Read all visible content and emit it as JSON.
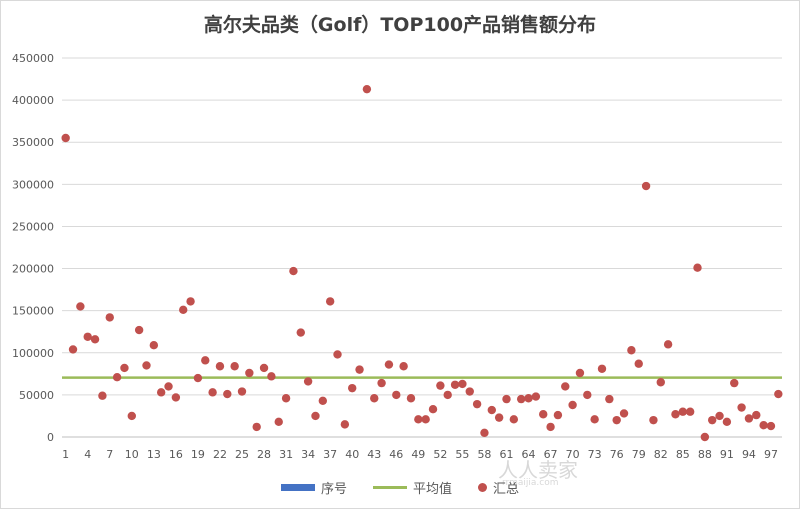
{
  "chart_data": {
    "type": "scatter",
    "title": "高尔夫品类（Golf）TOP100产品销售额分布",
    "ylim": [
      0,
      450000
    ],
    "y_ticks": [
      "0",
      "50000",
      "100000",
      "150000",
      "200000",
      "250000",
      "300000",
      "350000",
      "400000",
      "450000"
    ],
    "x_ticks": [
      "1",
      "4",
      "7",
      "10",
      "13",
      "16",
      "19",
      "22",
      "25",
      "28",
      "31",
      "34",
      "37",
      "40",
      "43",
      "46",
      "49",
      "52",
      "55",
      "58",
      "61",
      "64",
      "67",
      "70",
      "73",
      "76",
      "79",
      "82",
      "85",
      "88",
      "91",
      "94",
      "97"
    ],
    "x_tick_values": [
      1,
      4,
      7,
      10,
      13,
      16,
      19,
      22,
      25,
      28,
      31,
      34,
      37,
      40,
      43,
      46,
      49,
      52,
      55,
      58,
      61,
      64,
      67,
      70,
      73,
      76,
      79,
      82,
      85,
      88,
      91,
      94,
      97
    ],
    "xlim": [
      0.5,
      98.5
    ],
    "grid": "horizontal",
    "legend_position": "bottom",
    "series": [
      {
        "name": "序号",
        "kind": "bar",
        "color": "#4472C4",
        "values": []
      },
      {
        "name": "平均值",
        "kind": "line",
        "color": "#9BBB59",
        "value": 70500
      },
      {
        "name": "汇总",
        "kind": "scatter",
        "color": "#C0504D",
        "x": [
          1,
          2,
          3,
          4,
          5,
          6,
          7,
          8,
          9,
          10,
          11,
          12,
          13,
          14,
          15,
          16,
          17,
          18,
          19,
          20,
          21,
          22,
          23,
          24,
          25,
          26,
          27,
          28,
          29,
          30,
          31,
          32,
          33,
          34,
          35,
          36,
          37,
          38,
          39,
          40,
          41,
          42,
          43,
          44,
          45,
          46,
          47,
          48,
          49,
          50,
          51,
          52,
          53,
          54,
          55,
          56,
          57,
          58,
          59,
          60,
          61,
          62,
          63,
          64,
          65,
          66,
          67,
          68,
          69,
          70,
          71,
          72,
          73,
          74,
          75,
          76,
          77,
          78,
          79,
          80,
          81,
          82,
          83,
          84,
          85,
          86,
          87,
          88,
          89,
          90,
          91,
          92,
          93,
          94,
          95,
          96,
          97,
          98
        ],
        "y": [
          355000,
          104000,
          155000,
          119000,
          116000,
          49000,
          142000,
          71000,
          82000,
          25000,
          127000,
          85000,
          109000,
          53000,
          60000,
          47000,
          151000,
          161000,
          70000,
          91000,
          53000,
          84000,
          51000,
          84000,
          54000,
          76000,
          12000,
          82000,
          72000,
          18000,
          46000,
          197000,
          124000,
          66000,
          25000,
          43000,
          161000,
          98000,
          15000,
          58000,
          80000,
          413000,
          46000,
          64000,
          86000,
          50000,
          84000,
          46000,
          21000,
          21000,
          33000,
          61000,
          50000,
          62000,
          63000,
          54000,
          39000,
          5000,
          32000,
          23000,
          45000,
          21000,
          45000,
          46000,
          48000,
          27000,
          12000,
          26000,
          60000,
          38000,
          76000,
          50000,
          21000,
          81000,
          45000,
          20000,
          28000,
          103000,
          87000,
          298000,
          20000,
          65000,
          110000,
          27000,
          30000,
          30000,
          201000,
          0,
          20000,
          25000,
          18000,
          64000,
          35000,
          22000,
          26000,
          14000,
          13000,
          51000
        ]
      }
    ]
  },
  "legend": {
    "items": [
      "序号",
      "平均值",
      "汇总"
    ]
  },
  "watermark": {
    "text": "人人卖家",
    "sub": "rrmaijia.com"
  }
}
